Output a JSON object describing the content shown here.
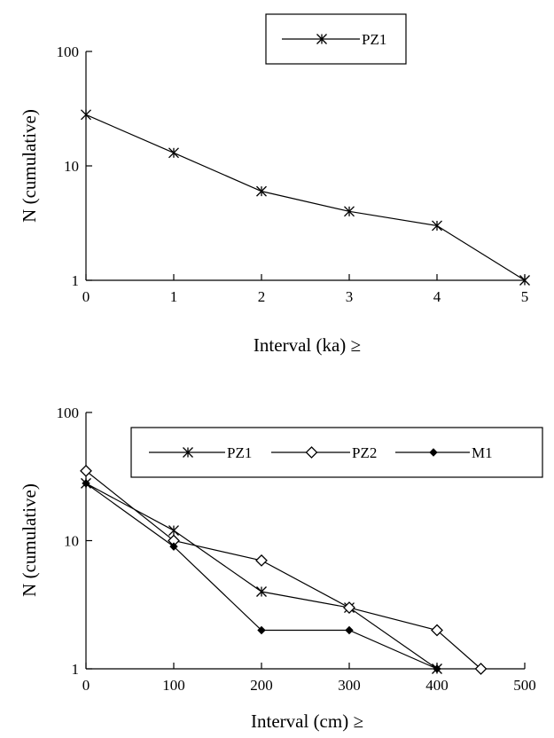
{
  "chart_data": [
    {
      "type": "line",
      "xlabel": "Interval (ka) ≥",
      "ylabel": "N (cumulative)",
      "xlim": [
        0,
        5
      ],
      "ylim": [
        1,
        100
      ],
      "yscale": "log",
      "x_ticks": [
        "0",
        "1",
        "2",
        "3",
        "4",
        "5"
      ],
      "y_ticks": [
        "1",
        "10",
        "100"
      ],
      "grid": false,
      "legend_position": "top-right",
      "series": [
        {
          "name": "PZ1",
          "marker": "asterisk",
          "x": [
            0,
            1,
            2,
            3,
            4,
            5
          ],
          "y": [
            28,
            13,
            6,
            4,
            3,
            1
          ]
        }
      ]
    },
    {
      "type": "line",
      "xlabel": "Interval (cm) ≥",
      "ylabel": "N (cumulative)",
      "xlim": [
        0,
        500
      ],
      "ylim": [
        1,
        100
      ],
      "yscale": "log",
      "x_ticks": [
        "0",
        "100",
        "200",
        "300",
        "400",
        "500"
      ],
      "y_ticks": [
        "1",
        "10",
        "100"
      ],
      "grid": false,
      "legend_position": "top",
      "series": [
        {
          "name": "PZ1",
          "marker": "asterisk",
          "x": [
            0,
            100,
            200,
            300,
            400
          ],
          "y": [
            28,
            12,
            4,
            3,
            1
          ]
        },
        {
          "name": "PZ2",
          "marker": "diamond-open",
          "x": [
            0,
            100,
            200,
            300,
            400,
            450
          ],
          "y": [
            35,
            10,
            7,
            3,
            2,
            1
          ]
        },
        {
          "name": "M1",
          "marker": "diamond-filled",
          "x": [
            0,
            100,
            200,
            300,
            400
          ],
          "y": [
            28,
            9,
            2,
            2,
            1
          ]
        }
      ]
    }
  ]
}
